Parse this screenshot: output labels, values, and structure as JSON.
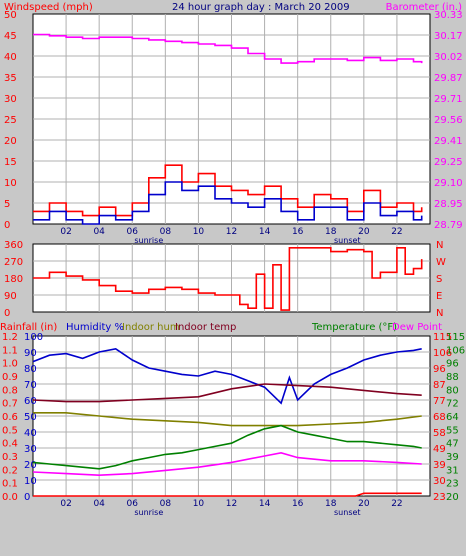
{
  "colors": {
    "bg": "#c8c8c8",
    "plot_bg": "#ffffff",
    "grid": "#b0b0b0",
    "frame": "#000000",
    "red": "#ff0000",
    "blue": "#0000cc",
    "magenta": "#ff00ff",
    "olive": "#808000",
    "maroon": "#800020",
    "green": "#008000",
    "title": "#000080"
  },
  "chart_data": [
    {
      "type": "line",
      "title": "24 hour graph day : March 20 2009",
      "ylabel_left": "Windspeed (mph)",
      "ylabel_right": "Barometer (in.)",
      "xlim": [
        0,
        24
      ],
      "ylim_left": [
        0,
        50
      ],
      "ylim_right": [
        28.79,
        30.33
      ],
      "left_ticks": [
        "0",
        "5",
        "10",
        "15",
        "20",
        "25",
        "30",
        "35",
        "40",
        "45",
        "50"
      ],
      "right_ticks": [
        "28.79",
        "28.95",
        "29.10",
        "29.25",
        "29.41",
        "29.56",
        "29.71",
        "29.87",
        "30.02",
        "30.17",
        "30.33"
      ],
      "x_tick_labels": [
        "02",
        "04",
        "06",
        "08",
        "10",
        "12",
        "14",
        "16",
        "18",
        "20",
        "22"
      ],
      "annotations": [
        "sunrise",
        "sunset"
      ],
      "grid": true,
      "series": [
        {
          "name": "Barometer",
          "axis": "right",
          "color": "magenta",
          "x": [
            0,
            1,
            2,
            3,
            4,
            5,
            6,
            7,
            8,
            9,
            10,
            11,
            12,
            13,
            14,
            15,
            16,
            17,
            18,
            19,
            20,
            21,
            22,
            23,
            23.5
          ],
          "values": [
            30.18,
            30.17,
            30.16,
            30.15,
            30.16,
            30.16,
            30.15,
            30.14,
            30.13,
            30.12,
            30.11,
            30.1,
            30.08,
            30.04,
            30.0,
            29.97,
            29.98,
            30.0,
            30.0,
            29.99,
            30.01,
            29.99,
            30.0,
            29.98,
            29.97
          ]
        },
        {
          "name": "Wind gust",
          "axis": "left",
          "color": "red",
          "x": [
            0,
            1,
            2,
            3,
            4,
            5,
            6,
            7,
            8,
            9,
            10,
            11,
            12,
            13,
            14,
            15,
            16,
            17,
            18,
            19,
            20,
            21,
            22,
            23,
            23.5
          ],
          "values": [
            3,
            5,
            3,
            2,
            4,
            2,
            5,
            11,
            14,
            10,
            12,
            9,
            8,
            7,
            9,
            6,
            4,
            7,
            6,
            3,
            8,
            4,
            5,
            3,
            4
          ]
        },
        {
          "name": "Wind speed",
          "axis": "left",
          "color": "blue",
          "x": [
            0,
            1,
            2,
            3,
            4,
            5,
            6,
            7,
            8,
            9,
            10,
            11,
            12,
            13,
            14,
            15,
            16,
            17,
            18,
            19,
            20,
            21,
            22,
            23,
            23.5
          ],
          "values": [
            1,
            3,
            1,
            0,
            2,
            1,
            3,
            7,
            10,
            8,
            9,
            6,
            5,
            4,
            6,
            3,
            1,
            4,
            4,
            1,
            5,
            2,
            3,
            1,
            2
          ]
        }
      ]
    },
    {
      "type": "line",
      "xlim": [
        0,
        24
      ],
      "ylim": [
        0,
        360
      ],
      "left_ticks": [
        "0",
        "90",
        "180",
        "270",
        "360"
      ],
      "right_labels": [
        "N",
        "W",
        "S",
        "E",
        "N"
      ],
      "grid": true,
      "series": [
        {
          "name": "Wind direction",
          "color": "red",
          "x": [
            0,
            1,
            2,
            3,
            4,
            5,
            6,
            7,
            8,
            9,
            10,
            11,
            12,
            12.5,
            13,
            13.5,
            14,
            14.5,
            15,
            15.5,
            16,
            17,
            18,
            19,
            20,
            20.5,
            21,
            22,
            22.5,
            23,
            23.5
          ],
          "values": [
            180,
            210,
            190,
            170,
            140,
            110,
            100,
            120,
            130,
            120,
            100,
            90,
            90,
            40,
            20,
            200,
            20,
            250,
            10,
            340,
            340,
            340,
            320,
            330,
            320,
            180,
            210,
            340,
            200,
            230,
            280
          ]
        }
      ]
    },
    {
      "type": "line",
      "legend": [
        "Rainfall (in)",
        "Humidity %",
        "Indoor hum",
        "Indoor temp",
        "Temperature (°F)",
        "Dew Point"
      ],
      "xlim": [
        0,
        24
      ],
      "rain_ticks": [
        "0.0",
        "0.1",
        "0.2",
        "0.3",
        "0.4",
        "0.5",
        "0.6",
        "0.7",
        "0.8",
        "0.9",
        "1.0",
        "1.1",
        "1.2"
      ],
      "humidity_ticks": [
        "0",
        "10",
        "20",
        "30",
        "40",
        "50",
        "60",
        "70",
        "80",
        "90",
        "100"
      ],
      "temp_ticks_right": [
        "20",
        "23",
        "31",
        "39",
        "47",
        "55",
        "64",
        "72",
        "80",
        "88",
        "96",
        "106",
        "115"
      ],
      "temp_ticks_mid": [
        "23",
        "30",
        "39",
        "49",
        "58",
        "68",
        "77",
        "87",
        "96",
        "106",
        "115"
      ],
      "x_tick_labels": [
        "02",
        "04",
        "06",
        "08",
        "10",
        "12",
        "14",
        "16",
        "18",
        "20",
        "22"
      ],
      "annotations": [
        "sunrise",
        "sunset"
      ],
      "grid": true,
      "series": [
        {
          "name": "Humidity %",
          "color": "blue",
          "x": [
            0,
            1,
            2,
            3,
            4,
            5,
            6,
            7,
            8,
            9,
            10,
            11,
            12,
            13,
            14,
            15,
            15.5,
            16,
            17,
            18,
            19,
            20,
            21,
            22,
            23,
            23.5
          ],
          "values": [
            84,
            88,
            89,
            86,
            90,
            92,
            85,
            80,
            78,
            76,
            75,
            78,
            76,
            72,
            68,
            58,
            74,
            60,
            70,
            76,
            80,
            85,
            88,
            90,
            91,
            92
          ]
        },
        {
          "name": "Indoor hum",
          "color": "olive",
          "x": [
            0,
            2,
            4,
            6,
            8,
            10,
            12,
            14,
            16,
            18,
            20,
            22,
            23.5
          ],
          "values": [
            52,
            52,
            50,
            48,
            47,
            46,
            44,
            44,
            44,
            45,
            46,
            48,
            50
          ]
        },
        {
          "name": "Indoor temp",
          "color": "maroon",
          "x": [
            0,
            2,
            4,
            6,
            8,
            10,
            12,
            14,
            16,
            18,
            20,
            22,
            23.5
          ],
          "values": [
            60,
            59,
            59,
            60,
            61,
            62,
            67,
            70,
            69,
            68,
            66,
            64,
            63
          ]
        },
        {
          "name": "Temperature (°F)",
          "color": "green",
          "x": [
            0,
            1,
            2,
            3,
            4,
            5,
            6,
            7,
            8,
            9,
            10,
            11,
            12,
            13,
            14,
            15,
            16,
            17,
            18,
            19,
            20,
            21,
            22,
            23,
            23.5
          ],
          "values": [
            21,
            20,
            19,
            18,
            17,
            19,
            22,
            24,
            26,
            27,
            29,
            31,
            33,
            38,
            42,
            44,
            40,
            38,
            36,
            34,
            34,
            33,
            32,
            31,
            30
          ]
        },
        {
          "name": "Dew Point",
          "color": "magenta",
          "x": [
            0,
            2,
            4,
            6,
            8,
            10,
            12,
            14,
            15,
            16,
            18,
            20,
            22,
            23.5
          ],
          "values": [
            15,
            14,
            13,
            14,
            16,
            18,
            21,
            25,
            27,
            24,
            22,
            22,
            21,
            20
          ]
        },
        {
          "name": "Rainfall (in)",
          "color": "red",
          "x": [
            0,
            19.5,
            20,
            23.5
          ],
          "values": [
            0.0,
            0.0,
            0.02,
            0.02
          ]
        }
      ]
    }
  ]
}
